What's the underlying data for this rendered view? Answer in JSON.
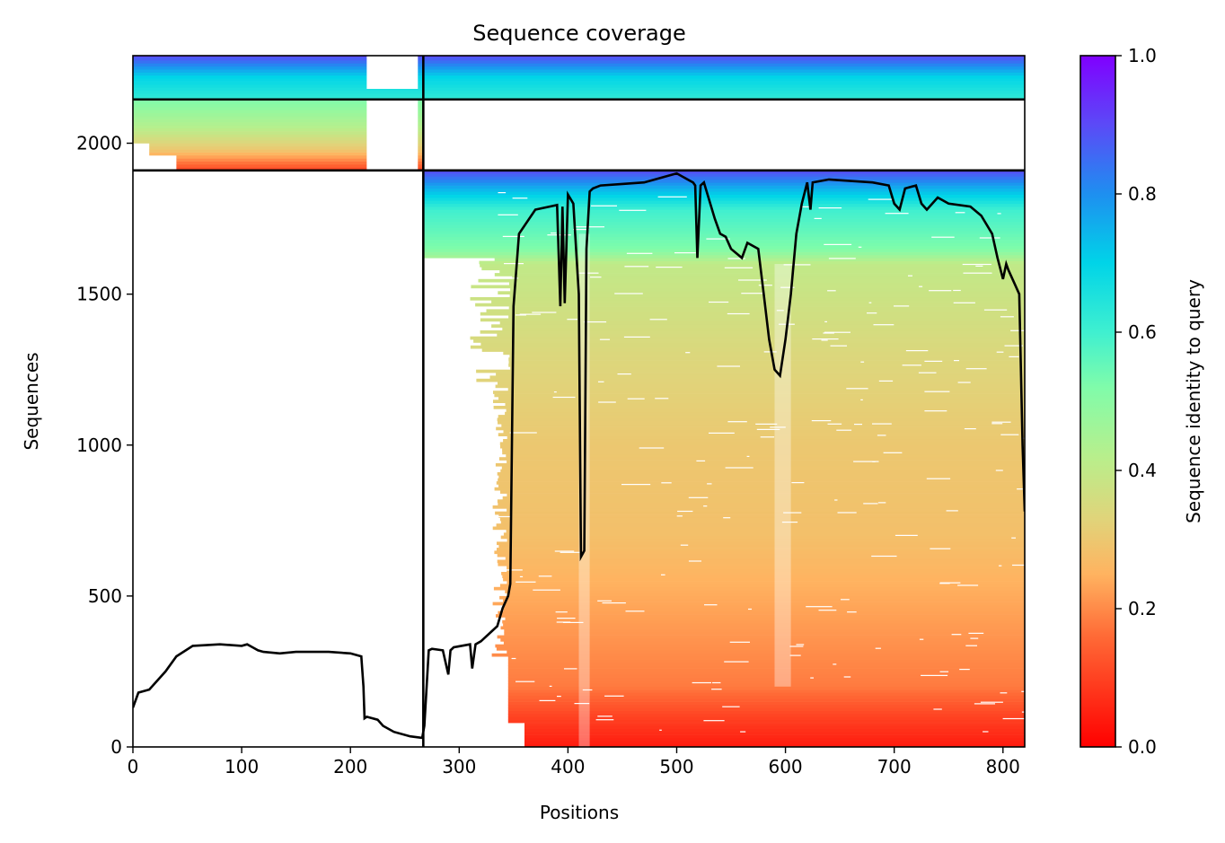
{
  "chart_data": {
    "type": "heatmap",
    "title": "Sequence coverage",
    "xlabel": "Positions",
    "ylabel": "Sequences",
    "xlim": [
      0,
      820
    ],
    "ylim": [
      0,
      2290
    ],
    "xticks": [
      0,
      100,
      200,
      300,
      400,
      500,
      600,
      700,
      800
    ],
    "yticks": [
      0,
      500,
      1000,
      1500,
      2000
    ],
    "colorbar": {
      "label": "Sequence identity to query",
      "range": [
        0,
        1
      ],
      "ticks": [
        0.0,
        0.2,
        0.4,
        0.6,
        0.8,
        1.0
      ],
      "tick_labels": [
        "0.0",
        "0.2",
        "0.4",
        "0.6",
        "0.8",
        "1.0"
      ],
      "colormap": "rainbow_r"
    },
    "chain_boundary_x": 267,
    "block_boundaries_y": [
      1910,
      2145
    ],
    "blocks": [
      {
        "x_range": [
          0,
          267
        ],
        "y_range": [
          1910,
          2145
        ]
      },
      {
        "x_range": [
          0,
          820
        ],
        "y_range": [
          2145,
          2290
        ]
      },
      {
        "x_range": [
          267,
          820
        ],
        "y_range": [
          0,
          1910
        ]
      }
    ],
    "coverage_line": {
      "x": [
        0,
        5,
        15,
        30,
        40,
        55,
        80,
        100,
        105,
        110,
        115,
        120,
        135,
        150,
        180,
        200,
        210,
        212,
        213,
        215,
        225,
        230,
        240,
        255,
        266,
        268,
        272,
        275,
        285,
        290,
        292,
        295,
        310,
        312,
        315,
        320,
        335,
        340,
        345,
        347,
        350,
        355,
        370,
        390,
        393,
        395,
        397,
        400,
        405,
        410,
        412,
        415,
        417,
        420,
        423,
        430,
        450,
        470,
        480,
        500,
        510,
        515,
        517,
        519,
        522,
        525,
        535,
        540,
        545,
        550,
        560,
        565,
        575,
        580,
        585,
        590,
        595,
        600,
        605,
        610,
        615,
        620,
        623,
        625,
        640,
        680,
        695,
        700,
        705,
        710,
        720,
        725,
        730,
        735,
        740,
        750,
        770,
        780,
        790,
        795,
        800,
        803,
        805,
        810,
        815,
        818,
        820
      ],
      "y": [
        130,
        180,
        190,
        250,
        300,
        335,
        340,
        335,
        340,
        330,
        320,
        315,
        310,
        315,
        315,
        310,
        300,
        200,
        95,
        100,
        90,
        70,
        50,
        35,
        30,
        70,
        320,
        325,
        320,
        240,
        320,
        330,
        340,
        260,
        340,
        350,
        400,
        460,
        500,
        540,
        1460,
        1700,
        1780,
        1795,
        1460,
        1790,
        1470,
        1830,
        1800,
        1500,
        630,
        650,
        1650,
        1840,
        1850,
        1860,
        1865,
        1870,
        1880,
        1900,
        1880,
        1870,
        1860,
        1620,
        1860,
        1870,
        1750,
        1700,
        1690,
        1650,
        1620,
        1670,
        1650,
        1500,
        1350,
        1250,
        1230,
        1350,
        1500,
        1700,
        1800,
        1870,
        1780,
        1870,
        1880,
        1870,
        1860,
        1800,
        1780,
        1850,
        1860,
        1800,
        1780,
        1800,
        1820,
        1800,
        1790,
        1760,
        1700,
        1620,
        1550,
        1600,
        1580,
        1540,
        1500,
        1000,
        780
      ]
    }
  }
}
